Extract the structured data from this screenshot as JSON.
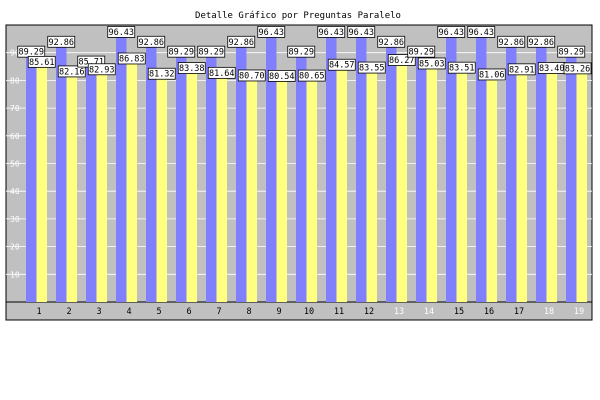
{
  "chart_data": {
    "type": "bar",
    "title": "Detalle Gráfico por Preguntas Paralelo",
    "xlabel": "",
    "ylabel": "",
    "ylim": [
      0,
      100
    ],
    "yticks": [
      10,
      20,
      30,
      40,
      50,
      60,
      70,
      80,
      90
    ],
    "grid": true,
    "legend": "none",
    "categories": [
      "1",
      "2",
      "3",
      "4",
      "5",
      "6",
      "7",
      "8",
      "9",
      "10",
      "11",
      "12",
      "13",
      "14",
      "15",
      "16",
      "17",
      "18",
      "19"
    ],
    "series": [
      {
        "color": "#8080ff",
        "values": [
          89.29,
          92.86,
          85.71,
          96.43,
          92.86,
          89.29,
          89.29,
          92.86,
          96.43,
          89.29,
          96.43,
          96.43,
          92.86,
          89.29,
          96.43,
          96.43,
          92.86,
          92.86,
          89.29
        ]
      },
      {
        "color": "#ffff80",
        "values": [
          85.61,
          82.16,
          82.93,
          86.83,
          81.32,
          83.38,
          81.64,
          80.7,
          80.54,
          80.65,
          84.57,
          83.55,
          86.27,
          85.03,
          83.51,
          81.06,
          82.91,
          83.4,
          83.26
        ]
      }
    ],
    "data_labels": [
      [
        "89.29",
        "92.86",
        "85.71",
        "96.43",
        "92.86",
        "89.29",
        "89.29",
        "92.86",
        "96.43",
        "89.29",
        "96.43",
        "96.43",
        "92.86",
        "89.29",
        "96.43",
        "96.43",
        "92.86",
        "92.86",
        "89.29"
      ],
      [
        "85.61",
        "82.16",
        "82.93",
        "86.83",
        "81.32",
        "83.38",
        "81.64",
        "80.70",
        "80.54",
        "80.65",
        "84.57",
        "83.55",
        "86.27",
        "85.03",
        "83.51",
        "81.06",
        "82.91",
        "83.40",
        "83.26"
      ]
    ],
    "light_xtick_indices": [
      12,
      13,
      17,
      18
    ],
    "colors": {
      "plot_bg": "#c0c0c0",
      "frame": "#000000",
      "grid": "#ffffff"
    }
  }
}
